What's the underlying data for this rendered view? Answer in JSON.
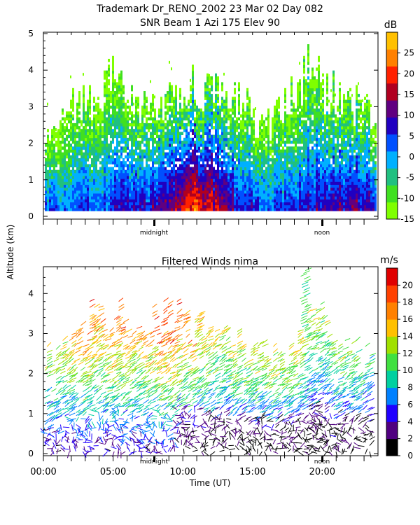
{
  "header": {
    "line1": "Trademark Dr_RENO_2002  23 Mar 02 Day 082",
    "line2": "SNR Beam 1 Azi 175 Elev 90"
  },
  "shared": {
    "ylabel": "Altitude (km)",
    "xlabel": "Time (UT)",
    "midnight_label": "midnight",
    "noon_label": "noon"
  },
  "colors": {
    "snr_scale": [
      "#7fff00",
      "#40e020",
      "#20c080",
      "#00b0ff",
      "#0050ff",
      "#2000c0",
      "#600080",
      "#b00020",
      "#ff2000",
      "#ff8000",
      "#ffc000"
    ],
    "wind_scale": [
      "#000000",
      "#500080",
      "#2000ff",
      "#0080ff",
      "#00d0a0",
      "#40e040",
      "#a0e000",
      "#ffc000",
      "#ff8000",
      "#ff4000",
      "#e00000"
    ]
  },
  "chart_data": [
    {
      "type": "heatmap",
      "title": "SNR Beam 1 Azi 175 Elev 90",
      "ylabel": "Altitude (km)",
      "ylim": [
        0,
        5
      ],
      "yticks": [
        "0",
        "1",
        "2",
        "3",
        "4",
        "5"
      ],
      "xlim_hours": [
        0,
        24
      ],
      "colorbar": {
        "unit": "dB",
        "ticks": [
          "25",
          "20",
          "15",
          "10",
          "5",
          "0",
          "-5",
          "-10",
          "-15"
        ],
        "range": [
          -15,
          30
        ]
      },
      "markers": [
        "midnight",
        "noon"
      ],
      "profile_top_km": [
        2.6,
        2.4,
        3.3,
        3.5,
        3.4,
        4.2,
        3.5,
        3.5,
        3.3,
        3.4,
        3.4,
        3.8,
        3.7,
        3.7,
        3.3,
        3.6,
        2.6,
        2.7,
        3.5,
        3.6,
        4.5,
        3.6,
        3.6,
        3.3,
        3.2,
        2.9
      ],
      "profile_peak_db": [
        4,
        3,
        4,
        5,
        6,
        7,
        9,
        9,
        10,
        12,
        16,
        24,
        20,
        18,
        10,
        8,
        6,
        5,
        5,
        6,
        9,
        10,
        10,
        12,
        11,
        8
      ]
    },
    {
      "type": "scatter",
      "title": "Filtered Winds nima",
      "ylabel": "Altitude (km)",
      "xlabel": "Time (UT)",
      "ylim": [
        0,
        4.6
      ],
      "yticks": [
        "0",
        "1",
        "2",
        "3",
        "4"
      ],
      "xlim_hours": [
        0,
        24
      ],
      "xticks": [
        "00:00",
        "05:00",
        "10:00",
        "15:00",
        "20:00"
      ],
      "colorbar": {
        "unit": "m/s",
        "ticks": [
          "20",
          "18",
          "16",
          "14",
          "12",
          "10",
          "8",
          "6",
          "4",
          "2",
          "0"
        ],
        "range": [
          0,
          22
        ]
      },
      "markers": [
        "midnight",
        "noon"
      ],
      "profile_top_km": [
        2.6,
        2.7,
        3.0,
        3.6,
        3.4,
        3.7,
        3.2,
        3.4,
        3.6,
        3.5,
        3.4,
        3.1,
        3.0,
        2.8,
        2.6,
        2.7,
        2.5,
        2.6,
        4.6,
        3.2,
        2.9,
        2.7,
        2.5
      ],
      "profile_max_ms": [
        14,
        13,
        16,
        18,
        16,
        18,
        15,
        17,
        20,
        18,
        16,
        14,
        13,
        14,
        13,
        14,
        13,
        14,
        13,
        12,
        12,
        11,
        10
      ]
    }
  ]
}
